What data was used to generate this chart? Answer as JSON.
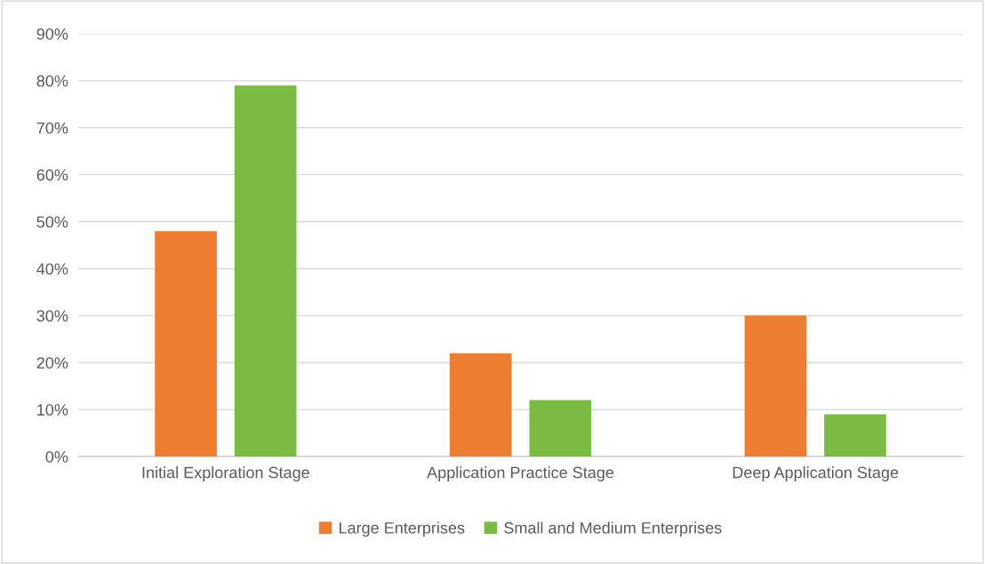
{
  "chart_data": {
    "type": "bar",
    "categories": [
      "Initial Exploration Stage",
      "Application Practice Stage",
      "Deep Application Stage"
    ],
    "series": [
      {
        "name": "Large Enterprises",
        "color": "#ed7d31",
        "values": [
          48,
          22,
          30
        ]
      },
      {
        "name": "Small and Medium Enterprises",
        "color": "#7abb42",
        "values": [
          79,
          12,
          9
        ]
      }
    ],
    "ylim": [
      0,
      90
    ],
    "yticks": [
      {
        "value": 0,
        "label": "0%"
      },
      {
        "value": 10,
        "label": "10%"
      },
      {
        "value": 20,
        "label": "20%"
      },
      {
        "value": 30,
        "label": "30%"
      },
      {
        "value": 40,
        "label": "40%"
      },
      {
        "value": 50,
        "label": "50%"
      },
      {
        "value": 60,
        "label": "60%"
      },
      {
        "value": 70,
        "label": "70%"
      },
      {
        "value": 80,
        "label": "80%"
      },
      {
        "value": 90,
        "label": "90%"
      }
    ],
    "grid": "y",
    "legend": "bottom"
  }
}
